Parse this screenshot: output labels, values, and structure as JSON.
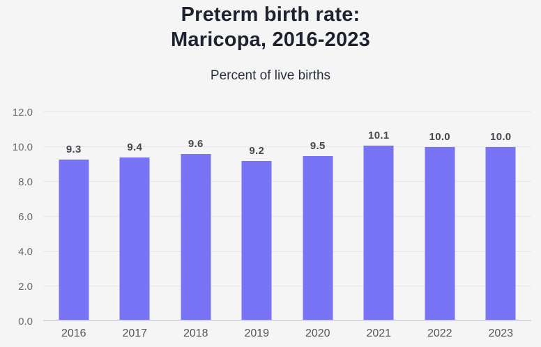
{
  "page": {
    "background": "#f5f5f6"
  },
  "header": {
    "title_line1": "Preterm birth rate:",
    "title_line2": "Maricopa, 2016-2023",
    "subtitle": "Percent of live births"
  },
  "chart_data": {
    "type": "bar",
    "title": "Preterm birth rate: Maricopa, 2016-2023",
    "subtitle": "Percent of live births",
    "categories": [
      "2016",
      "2017",
      "2018",
      "2019",
      "2020",
      "2021",
      "2022",
      "2023"
    ],
    "values": [
      9.3,
      9.4,
      9.6,
      9.2,
      9.5,
      10.1,
      10.0,
      10.0
    ],
    "value_labels": [
      "9.3",
      "9.4",
      "9.6",
      "9.2",
      "9.5",
      "10.1",
      "10.0",
      "10.0"
    ],
    "xlabel": "",
    "ylabel": "Percent of live births",
    "ylim": [
      0,
      12
    ],
    "ytick_values": [
      0,
      2,
      4,
      6,
      8,
      10,
      12
    ],
    "ytick_labels": [
      "0.0",
      "2.0",
      "4.0",
      "6.0",
      "8.0",
      "10.0",
      "12.0"
    ],
    "grid": true,
    "legend_position": "none",
    "bar_color": "#7874f5"
  }
}
